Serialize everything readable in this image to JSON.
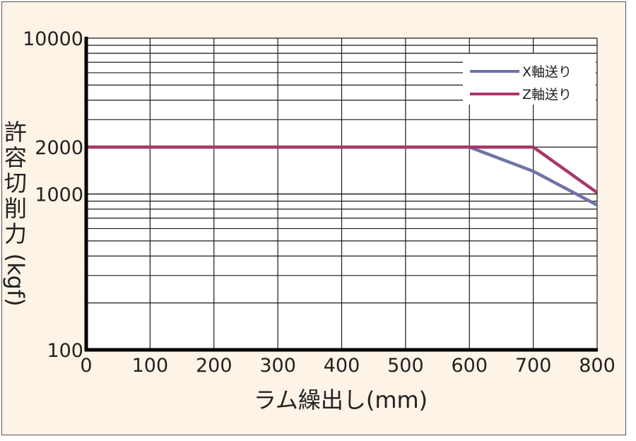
{
  "chart_data": {
    "type": "line",
    "title": "",
    "xlabel": "ラム繰出し(mm)",
    "ylabel": "許容切削力(kgf)",
    "x_scale": "linear",
    "y_scale": "log",
    "xlim": [
      0,
      800
    ],
    "ylim": [
      100,
      10000
    ],
    "x_ticks": [
      0,
      100,
      200,
      300,
      400,
      500,
      600,
      700,
      800
    ],
    "x_tick_labels": [
      "0",
      "100",
      "200",
      "300",
      "400",
      "500",
      "600",
      "700",
      "800"
    ],
    "y_ticks": [
      100,
      1000,
      2000,
      10000
    ],
    "y_tick_labels": [
      "100",
      "1000",
      "2000",
      "10000"
    ],
    "grid": true,
    "legend": "top-right",
    "series": [
      {
        "name": "X軸送り",
        "color": "#6e74a6",
        "x": [
          0,
          600,
          700,
          800
        ],
        "y": [
          2000,
          2000,
          1400,
          850
        ]
      },
      {
        "name": "Z軸送り",
        "color": "#a8386a",
        "x": [
          0,
          700,
          800
        ],
        "y": [
          2000,
          2000,
          1020
        ]
      }
    ]
  }
}
